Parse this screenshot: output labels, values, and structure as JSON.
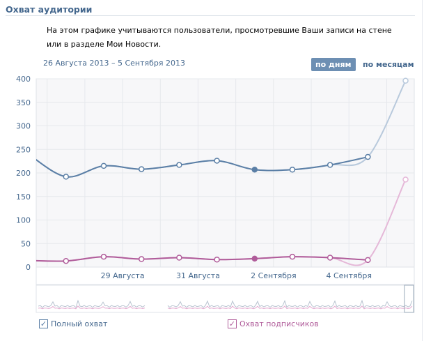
{
  "header": {
    "title": "Охват аудитории",
    "description": "На этом графике учитываются пользователи, просмотревшие Ваши записи на стене или в разделе Мои Новости.",
    "date_range": "26 Августа 2013 – 5 Сентября 2013",
    "by_days": "по дням",
    "by_months": "по месяцам"
  },
  "legend": {
    "full": "Полный охват",
    "subscribers": "Охват подписчиков"
  },
  "colors": {
    "full": "#5b7fa6",
    "subscribers": "#b05c9a"
  },
  "chart_data": {
    "type": "line",
    "x_unit": "days since 26 Aug 2013",
    "x": [
      0.5,
      1.5,
      2.5,
      3.5,
      4.5,
      5.5,
      6.5,
      7.5,
      8.5,
      9.5,
      10.5
    ],
    "xlim": [
      0.71,
      10.73
    ],
    "ylim": [
      0,
      400
    ],
    "yticks": [
      0,
      50,
      100,
      150,
      200,
      250,
      300,
      350,
      400
    ],
    "xticks": [
      {
        "x": 3,
        "label": "29 Августа"
      },
      {
        "x": 5,
        "label": "31 Августа"
      },
      {
        "x": 7,
        "label": "2 Сентября"
      },
      {
        "x": 9,
        "label": "4 Сентября"
      }
    ],
    "series": [
      {
        "name": "Полный охват",
        "values": [
          240,
          192,
          215,
          208,
          217,
          226,
          207,
          207,
          217,
          234,
          396
        ]
      },
      {
        "name": "Охват подписчиков",
        "values": [
          14,
          13,
          22,
          17,
          20,
          16,
          18,
          22,
          20,
          15,
          186
        ]
      }
    ],
    "highlight_index": 6
  }
}
